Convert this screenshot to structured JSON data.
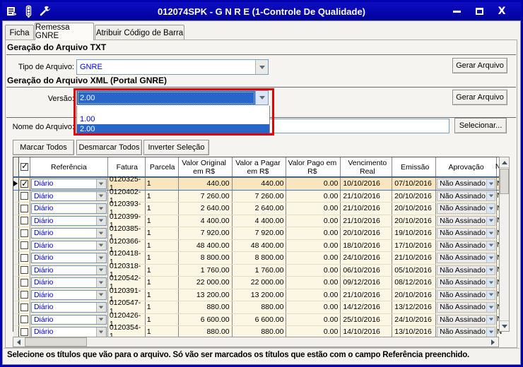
{
  "window": {
    "title": "012074SPK - G N R E (1-Controle De Qualidade)"
  },
  "tabs": [
    {
      "label": "Ficha",
      "active": false
    },
    {
      "label": "Remessa GNRE",
      "active": true
    },
    {
      "label": "Atribuir Código de Barra",
      "active": false
    }
  ],
  "txt_section": {
    "title": "Geração do Arquivo TXT",
    "file_type_label": "Tipo de Arquivo:",
    "file_type_value": "GNRE",
    "generate_button": "Gerar Arquivo"
  },
  "xml_section": {
    "title": "Geração do Arquivo XML (Portal GNRE)",
    "version_label": "Versão:",
    "version_value": "2.00",
    "version_options": [
      "1.00",
      "2.00"
    ],
    "version_selected": "2.00",
    "generate_button": "Gerar Arquivo",
    "file_name_label": "Nome do Arquivo:",
    "file_name_value": "",
    "select_button": "Selecionar..."
  },
  "selection_buttons": {
    "mark_all": "Marcar Todos",
    "unmark_all": "Desmarcar Todos",
    "invert": "Inverter Seleção"
  },
  "table": {
    "headers": [
      "",
      "☑",
      "Referência",
      "Fatura",
      "Parcela",
      "Valor Original em R$",
      "Valor a Pagar em R$",
      "Valor Pago em R$",
      "Vencimento Real",
      "Emissão",
      "Aprovação",
      "N"
    ],
    "rows": [
      {
        "selected": true,
        "checked": true,
        "referencia": "Diário",
        "fatura": "0120325-1",
        "parcela": "1",
        "valor_original": "440.00",
        "valor_a_pagar": "440.00",
        "valor_pago": "0.00",
        "vencimento_real": "10/10/2016",
        "emissao": "07/10/2016",
        "aprovacao": "Não Assinado"
      },
      {
        "selected": false,
        "checked": false,
        "referencia": "Diário",
        "fatura": "0120402-1",
        "parcela": "1",
        "valor_original": "7 260.00",
        "valor_a_pagar": "7 260.00",
        "valor_pago": "0.00",
        "vencimento_real": "21/10/2016",
        "emissao": "20/10/2016",
        "aprovacao": "Não Assinado"
      },
      {
        "selected": false,
        "checked": false,
        "referencia": "Diário",
        "fatura": "0120393-1",
        "parcela": "1",
        "valor_original": "2 640.00",
        "valor_a_pagar": "2 640.00",
        "valor_pago": "0.00",
        "vencimento_real": "21/10/2016",
        "emissao": "20/10/2016",
        "aprovacao": "Não Assinado"
      },
      {
        "selected": false,
        "checked": false,
        "referencia": "Diário",
        "fatura": "0120399-1",
        "parcela": "1",
        "valor_original": "4 400.00",
        "valor_a_pagar": "4 400.00",
        "valor_pago": "0.00",
        "vencimento_real": "21/10/2016",
        "emissao": "20/10/2016",
        "aprovacao": "Não Assinado"
      },
      {
        "selected": false,
        "checked": false,
        "referencia": "Diário",
        "fatura": "0120385-1",
        "parcela": "1",
        "valor_original": "7 920.00",
        "valor_a_pagar": "7 920.00",
        "valor_pago": "0.00",
        "vencimento_real": "20/10/2016",
        "emissao": "19/10/2016",
        "aprovacao": "Não Assinado"
      },
      {
        "selected": false,
        "checked": false,
        "referencia": "Diário",
        "fatura": "0120366-1",
        "parcela": "1",
        "valor_original": "48 400.00",
        "valor_a_pagar": "48 400.00",
        "valor_pago": "0.00",
        "vencimento_real": "18/10/2016",
        "emissao": "17/10/2016",
        "aprovacao": "Não Assinado"
      },
      {
        "selected": false,
        "checked": false,
        "referencia": "Diário",
        "fatura": "0120418-1",
        "parcela": "1",
        "valor_original": "8 800.00",
        "valor_a_pagar": "8 800.00",
        "valor_pago": "0.00",
        "vencimento_real": "24/10/2016",
        "emissao": "21/10/2016",
        "aprovacao": "Não Assinado"
      },
      {
        "selected": false,
        "checked": false,
        "referencia": "Diário",
        "fatura": "0120318-1",
        "parcela": "1",
        "valor_original": "1 760.00",
        "valor_a_pagar": "1 760.00",
        "valor_pago": "0.00",
        "vencimento_real": "06/10/2016",
        "emissao": "05/10/2016",
        "aprovacao": "Não Assinado"
      },
      {
        "selected": false,
        "checked": false,
        "referencia": "Diário",
        "fatura": "0120542-1",
        "parcela": "1",
        "valor_original": "22 000.00",
        "valor_a_pagar": "22 000.00",
        "valor_pago": "0.00",
        "vencimento_real": "09/12/2016",
        "emissao": "08/12/2016",
        "aprovacao": "Não Assinado"
      },
      {
        "selected": false,
        "checked": false,
        "referencia": "Diário",
        "fatura": "0120391-1",
        "parcela": "1",
        "valor_original": "13 200.00",
        "valor_a_pagar": "13 200.00",
        "valor_pago": "0.00",
        "vencimento_real": "21/10/2016",
        "emissao": "20/10/2016",
        "aprovacao": "Não Assinado"
      },
      {
        "selected": false,
        "checked": false,
        "referencia": "Diário",
        "fatura": "0120547-1",
        "parcela": "1",
        "valor_original": "880.00",
        "valor_a_pagar": "880.00",
        "valor_pago": "0.00",
        "vencimento_real": "14/12/2016",
        "emissao": "13/12/2016",
        "aprovacao": "Não Assinado"
      },
      {
        "selected": false,
        "checked": false,
        "referencia": "Diário",
        "fatura": "0120426-1",
        "parcela": "1",
        "valor_original": "6 600.00",
        "valor_a_pagar": "6 600.00",
        "valor_pago": "0.00",
        "vencimento_real": "25/10/2016",
        "emissao": "24/10/2016",
        "aprovacao": "Não Assinado"
      },
      {
        "selected": false,
        "checked": false,
        "referencia": "Diário",
        "fatura": "0120354-1",
        "parcela": "1",
        "valor_original": "880.00",
        "valor_a_pagar": "880.00",
        "valor_pago": "0.00",
        "vencimento_real": "14/10/2016",
        "emissao": "13/10/2016",
        "aprovacao": "Não Assinado"
      }
    ]
  },
  "status_bar": {
    "message": "Selecione os títulos que vão para o arquivo. Só vão ser marcados os títulos que estão com o campo Referência preenchido."
  },
  "colors": {
    "titlebar": "#0101ae",
    "selection_blue": "#2765c8",
    "link_text_blue": "#0000e0",
    "highlight_box_red": "#e60000",
    "row_bg": "#fcf6e4",
    "selected_row_bg": "#f9e6bf"
  }
}
